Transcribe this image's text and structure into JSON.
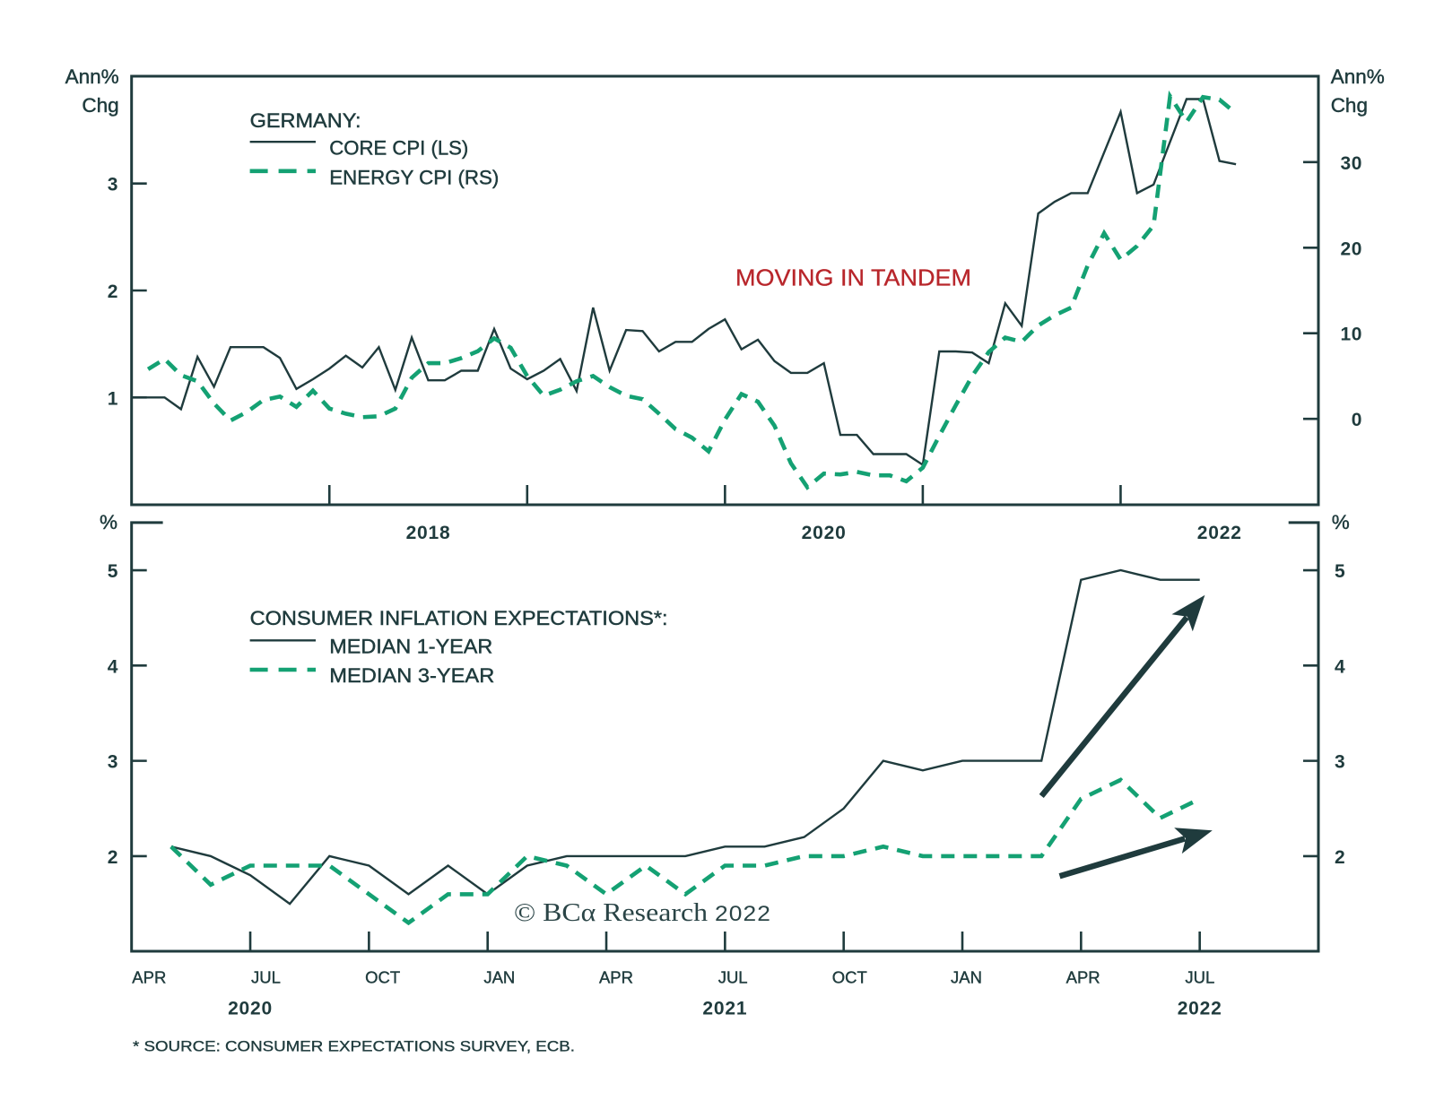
{
  "colors": {
    "ink": "#1f3b3d",
    "green": "#14a173",
    "annotation_red": "#b8262b",
    "background": "#ffffff"
  },
  "chart_data": [
    {
      "id": "germany-cpi",
      "type": "line",
      "title": "GERMANY:",
      "x_range": [
        "2016-12",
        "2022-12"
      ],
      "frequency": "monthly",
      "x_ticks": [
        "2017-12",
        "2018-12",
        "2019-12",
        "2020-12",
        "2021-12"
      ],
      "x_labels": [
        {
          "at": "2018-06",
          "label": "2018"
        },
        {
          "at": "2020-06",
          "label": "2020"
        },
        {
          "at": "2022-06",
          "label": "2022"
        }
      ],
      "y_left": {
        "title": [
          "Ann%",
          "Chg"
        ],
        "range": [
          0,
          4
        ],
        "ticks": [
          1,
          2,
          3
        ],
        "tick_labels": [
          "1",
          "2",
          "3"
        ]
      },
      "y_right": {
        "title": [
          "Ann%",
          "Chg"
        ],
        "range": [
          -10,
          40
        ],
        "ticks": [
          0,
          10,
          20,
          30
        ],
        "tick_labels": [
          "0",
          "10",
          "20",
          "30"
        ]
      },
      "grid": false,
      "legend": {
        "title": "GERMANY:",
        "position": "top-left"
      },
      "series": [
        {
          "id": "core-cpi",
          "name": "CORE CPI (LS)",
          "axis": "left",
          "style": "solid",
          "color": "#1f3b3d",
          "start": "2016-12",
          "values": [
            1.0,
            1.0,
            1.0,
            0.89,
            1.38,
            1.1,
            1.47,
            1.47,
            1.47,
            1.37,
            1.08,
            1.17,
            1.27,
            1.39,
            1.28,
            1.47,
            1.07,
            1.56,
            1.16,
            1.16,
            1.25,
            1.25,
            1.64,
            1.27,
            1.17,
            1.25,
            1.36,
            1.06,
            1.84,
            1.25,
            1.63,
            1.62,
            1.43,
            1.52,
            1.52,
            1.64,
            1.73,
            1.45,
            1.54,
            1.34,
            1.23,
            1.23,
            1.32,
            0.65,
            0.65,
            0.47,
            0.47,
            0.47,
            0.37,
            1.43,
            1.43,
            1.42,
            1.32,
            1.88,
            1.67,
            2.72,
            2.83,
            2.91,
            2.91,
            3.29,
            3.67,
            2.91,
            2.99,
            3.39,
            3.79,
            3.79,
            3.21,
            3.18
          ]
        },
        {
          "id": "energy-cpi",
          "name": "ENERGY CPI (RS)",
          "axis": "right",
          "style": "dashed",
          "color": "#14a173",
          "start": "2017-01",
          "values": [
            5.8,
            7.0,
            5.1,
            4.4,
            1.8,
            -0.2,
            0.8,
            2.2,
            2.6,
            1.4,
            3.3,
            1.2,
            0.6,
            0.2,
            0.3,
            1.2,
            4.8,
            6.5,
            6.5,
            7.1,
            7.9,
            9.4,
            8.3,
            5.0,
            2.7,
            3.4,
            4.4,
            5.0,
            3.7,
            2.7,
            2.3,
            0.6,
            -1.2,
            -2.2,
            -3.8,
            -0.1,
            2.9,
            2.0,
            -0.8,
            -5.2,
            -8.0,
            -6.4,
            -6.5,
            -6.2,
            -6.6,
            -6.6,
            -7.3,
            -5.7,
            -2.0,
            1.6,
            5.0,
            7.8,
            9.5,
            9.0,
            10.9,
            12.1,
            13.0,
            17.9,
            21.7,
            18.6,
            20.2,
            22.6,
            37.7,
            34.7,
            37.6,
            37.3,
            35.7
          ]
        }
      ],
      "annotations": [
        {
          "type": "text",
          "text": "MOVING IN TANDEM",
          "color": "#b8262b"
        }
      ]
    },
    {
      "id": "inflation-expectations",
      "type": "line",
      "title": "CONSUMER INFLATION EXPECTATIONS*:",
      "x_range": [
        "2020-04",
        "2022-10"
      ],
      "frequency": "monthly",
      "x_ticks": [
        "2020-07",
        "2020-10",
        "2021-01",
        "2021-04",
        "2021-07",
        "2021-10",
        "2022-01",
        "2022-04",
        "2022-07"
      ],
      "x_labels": [
        {
          "at": "2020-04",
          "label": "APR"
        },
        {
          "at": "2020-07",
          "label": "JUL"
        },
        {
          "at": "2020-10",
          "label": "OCT"
        },
        {
          "at": "2021-01",
          "label": "JAN"
        },
        {
          "at": "2021-04",
          "label": "APR"
        },
        {
          "at": "2021-07",
          "label": "JUL"
        },
        {
          "at": "2021-10",
          "label": "OCT"
        },
        {
          "at": "2022-01",
          "label": "JAN"
        },
        {
          "at": "2022-04",
          "label": "APR"
        },
        {
          "at": "2022-07",
          "label": "JUL"
        }
      ],
      "year_labels": [
        {
          "at": "2020-07",
          "label": "2020"
        },
        {
          "at": "2021-07",
          "label": "2021"
        },
        {
          "at": "2022-07",
          "label": "2022"
        }
      ],
      "y_left": {
        "title": [
          "%"
        ],
        "range": [
          1,
          5.5
        ],
        "ticks": [
          2,
          3,
          4,
          5
        ],
        "tick_labels": [
          "2",
          "3",
          "4",
          "5"
        ]
      },
      "y_right": {
        "title": [
          "%"
        ],
        "range": [
          1,
          5.5
        ],
        "ticks": [
          2,
          3,
          4,
          5
        ],
        "tick_labels": [
          "2",
          "3",
          "4",
          "5"
        ]
      },
      "grid": false,
      "legend": {
        "title": "CONSUMER INFLATION EXPECTATIONS*:",
        "position": "top-left"
      },
      "series": [
        {
          "id": "median-1-year",
          "name": "MEDIAN 1-YEAR",
          "axis": "left",
          "style": "solid",
          "color": "#1f3b3d",
          "start": "2020-05",
          "values": [
            2.1,
            2.0,
            1.8,
            1.5,
            2.0,
            1.9,
            1.6,
            1.9,
            1.6,
            1.9,
            2.0,
            2.0,
            2.0,
            2.0,
            2.1,
            2.1,
            2.2,
            2.5,
            3.0,
            2.9,
            3.0,
            3.0,
            3.0,
            4.9,
            5.0,
            4.9,
            4.9
          ]
        },
        {
          "id": "median-3-year",
          "name": "MEDIAN 3-YEAR",
          "axis": "left",
          "style": "dashed",
          "color": "#14a173",
          "start": "2020-05",
          "values": [
            2.1,
            1.7,
            1.9,
            1.9,
            1.9,
            1.6,
            1.3,
            1.6,
            1.6,
            2.0,
            1.9,
            1.6,
            1.9,
            1.6,
            1.9,
            1.9,
            2.0,
            2.0,
            2.1,
            2.0,
            2.0,
            2.0,
            2.0,
            2.6,
            2.8,
            2.4,
            2.6
          ]
        }
      ],
      "arrows_note": "arrow coordinates are [months since x_range start, value in %]",
      "arrows": [
        {
          "target": "median-1-year",
          "from": [
            23.0,
            2.63
          ],
          "to": [
            27.13,
            4.74
          ]
        },
        {
          "target": "median-3-year",
          "from": [
            23.46,
            1.79
          ],
          "to": [
            27.32,
            2.27
          ]
        }
      ]
    }
  ],
  "footnote": "* SOURCE: CONSUMER EXPECTATIONS SURVEY, ECB.",
  "watermark": {
    "symbol": "©",
    "brand": "BCα Research",
    "year": "2022"
  }
}
